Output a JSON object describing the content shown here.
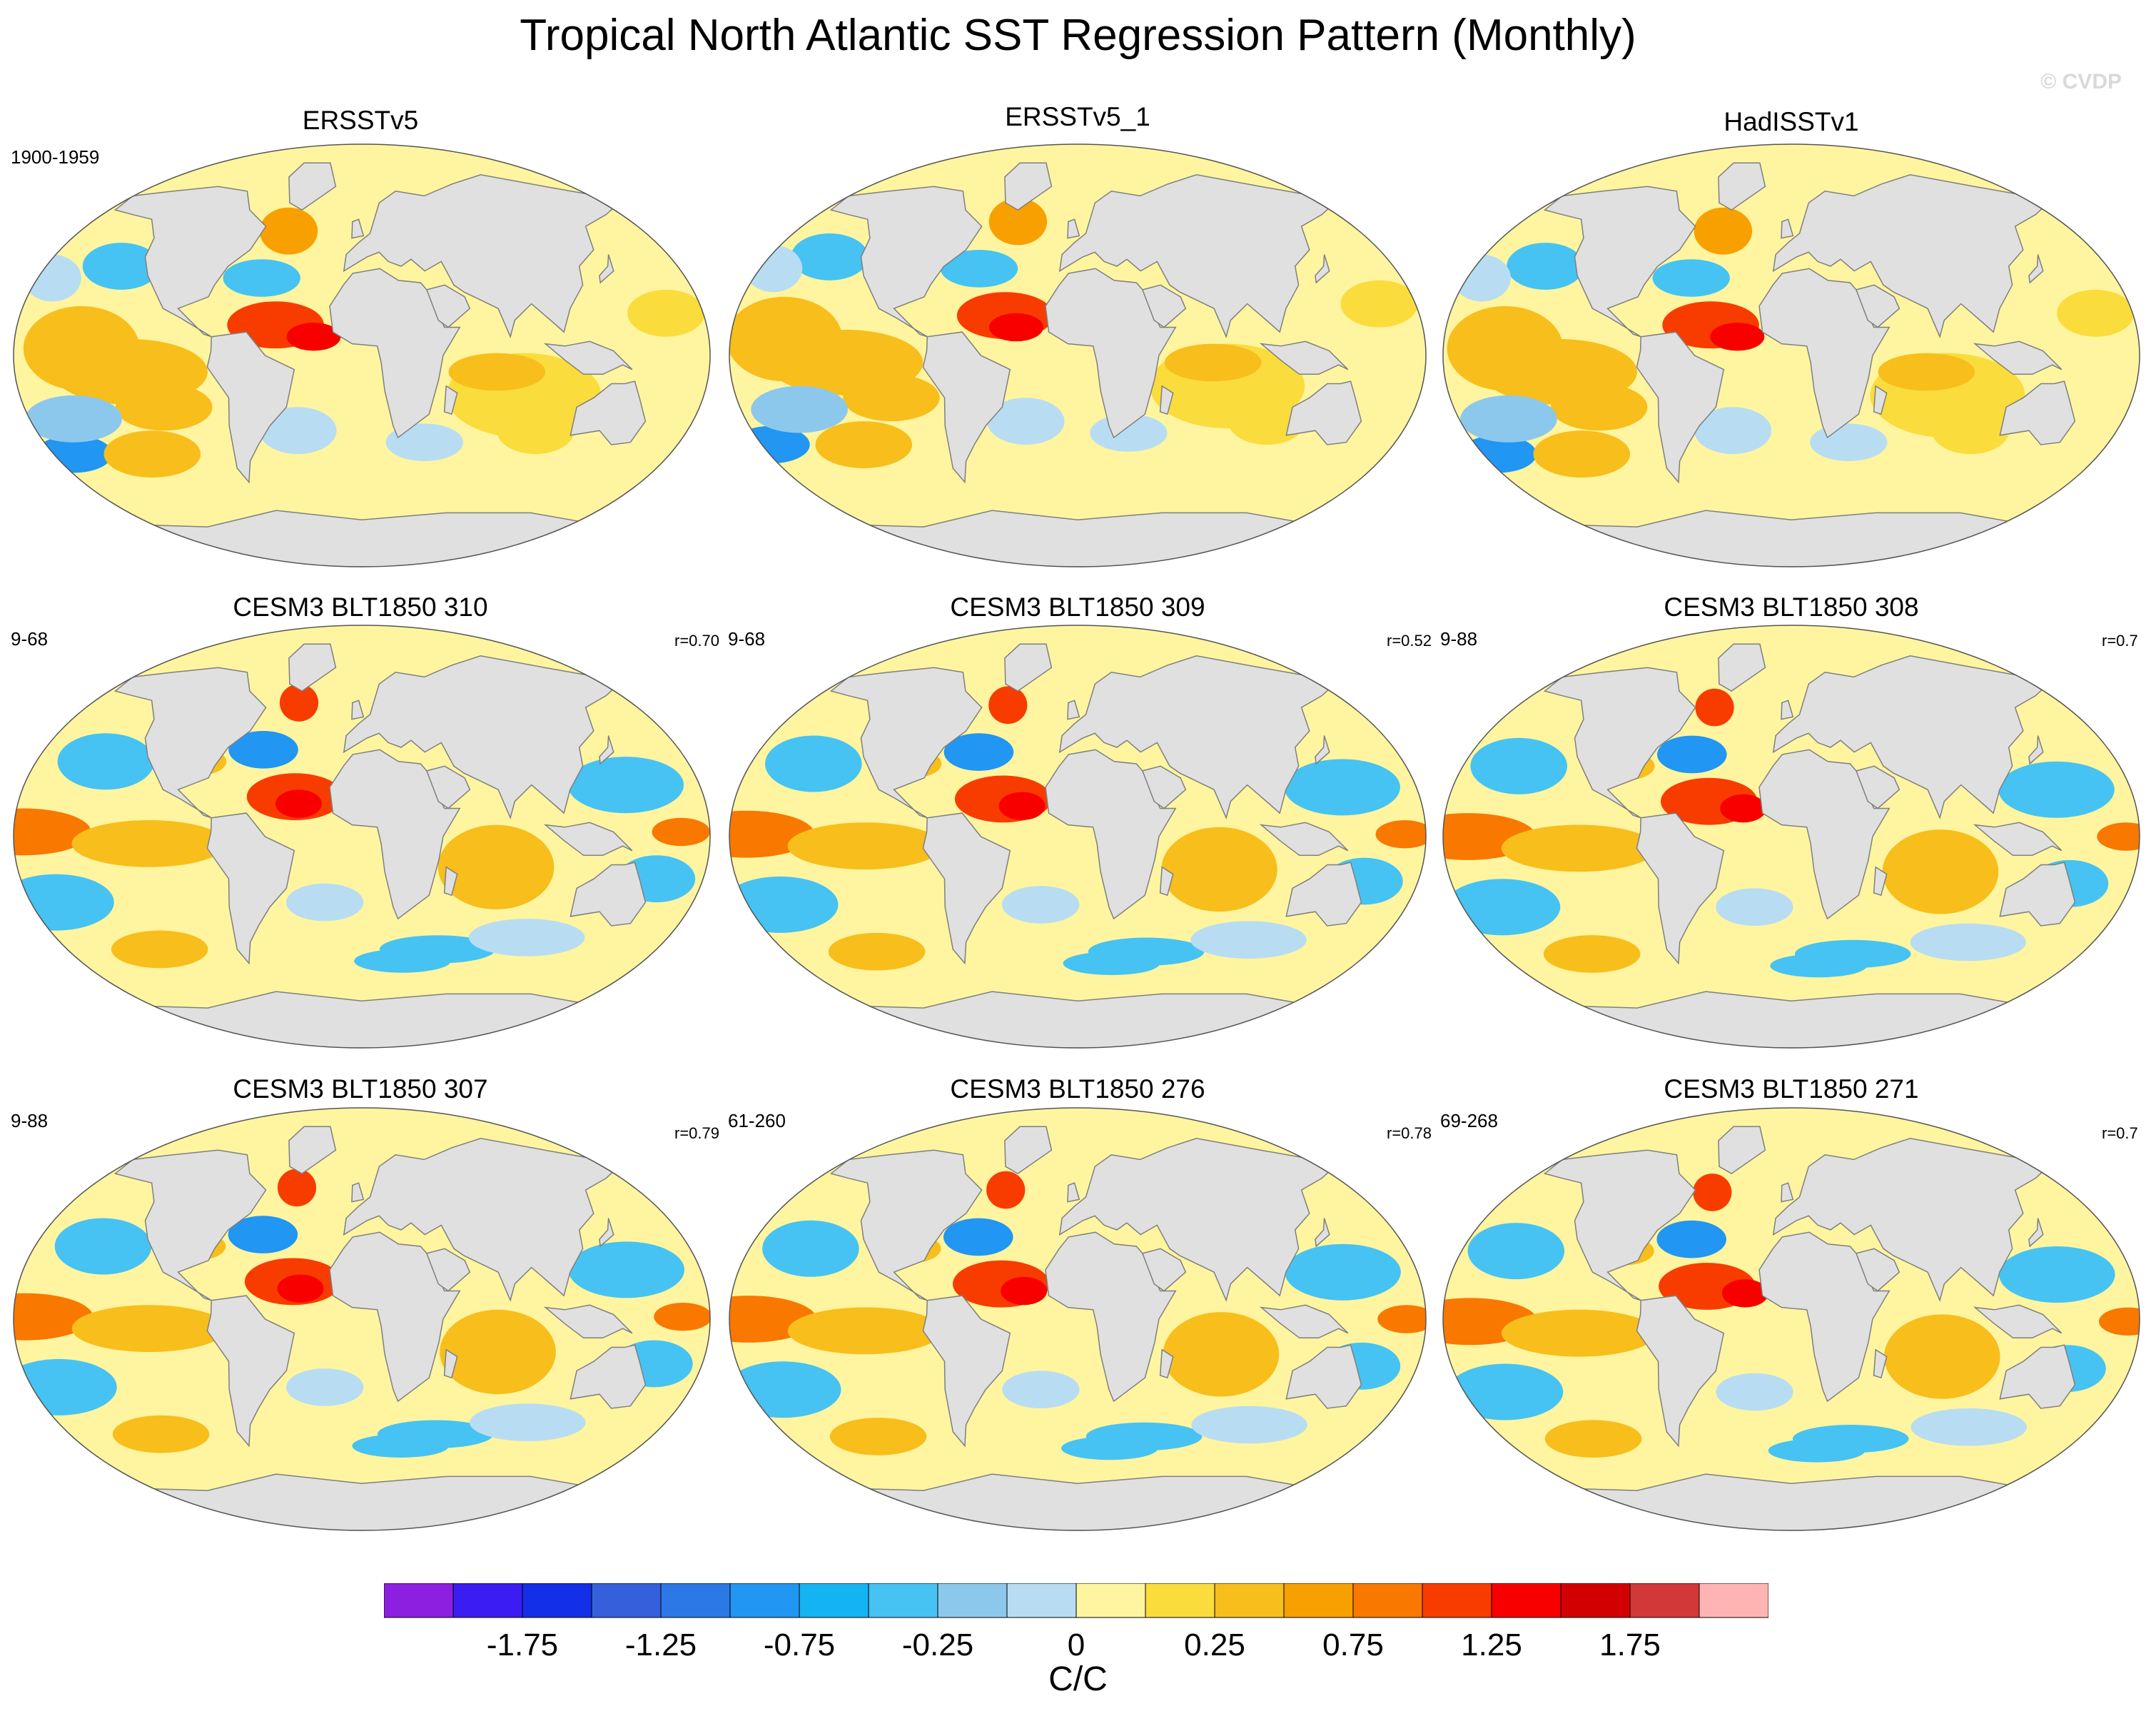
{
  "title": "Tropical North Atlantic SST Regression Pattern (Monthly)",
  "watermark": "© CVDP",
  "panels": [
    {
      "title": "ERSSTv5",
      "years": "1900-1959",
      "corr": "",
      "pattern": 0
    },
    {
      "title": "ERSSTv5_1",
      "years": "",
      "corr": "",
      "pattern": 1
    },
    {
      "title": "HadISSTv1",
      "years": "",
      "corr": "",
      "pattern": 2
    },
    {
      "title": "CESM3 BLT1850 310",
      "years": "9-68",
      "corr": "r=0.70",
      "pattern": 3
    },
    {
      "title": "CESM3 BLT1850 309",
      "years": "9-68",
      "corr": "r=0.52",
      "pattern": 4
    },
    {
      "title": "CESM3 BLT1850 308",
      "years": "9-88",
      "corr": "r=0.7",
      "pattern": 5
    },
    {
      "title": "CESM3 BLT1850 307",
      "years": "9-88",
      "corr": "r=0.79",
      "pattern": 6
    },
    {
      "title": "CESM3 BLT1850 276",
      "years": "61-260",
      "corr": "r=0.78",
      "pattern": 7
    },
    {
      "title": "CESM3 BLT1850 271",
      "years": "69-268",
      "corr": "r=0.7",
      "pattern": 8
    }
  ],
  "colorbar": {
    "colors": [
      "#8c1fe0",
      "#3b1cf2",
      "#1330e8",
      "#3460dc",
      "#2c78e6",
      "#2196f3",
      "#14b4f2",
      "#46c3f2",
      "#8cc8ec",
      "#b8ddf2",
      "#fff5a0",
      "#fadc3c",
      "#f7be1c",
      "#f8a000",
      "#f87800",
      "#f83c00",
      "#f80000",
      "#d20000",
      "#d23838",
      "#ffb4b4"
    ],
    "labels": [
      "-1.75",
      "-1.25",
      "-0.75",
      "-0.25",
      "0",
      "0.25",
      "0.75",
      "1.25",
      "1.75"
    ],
    "units": "C/C"
  },
  "palette": {
    "land": "#e0e0e0",
    "coast": "#7f7f7f",
    "ocean_base": "#fff5a0"
  }
}
